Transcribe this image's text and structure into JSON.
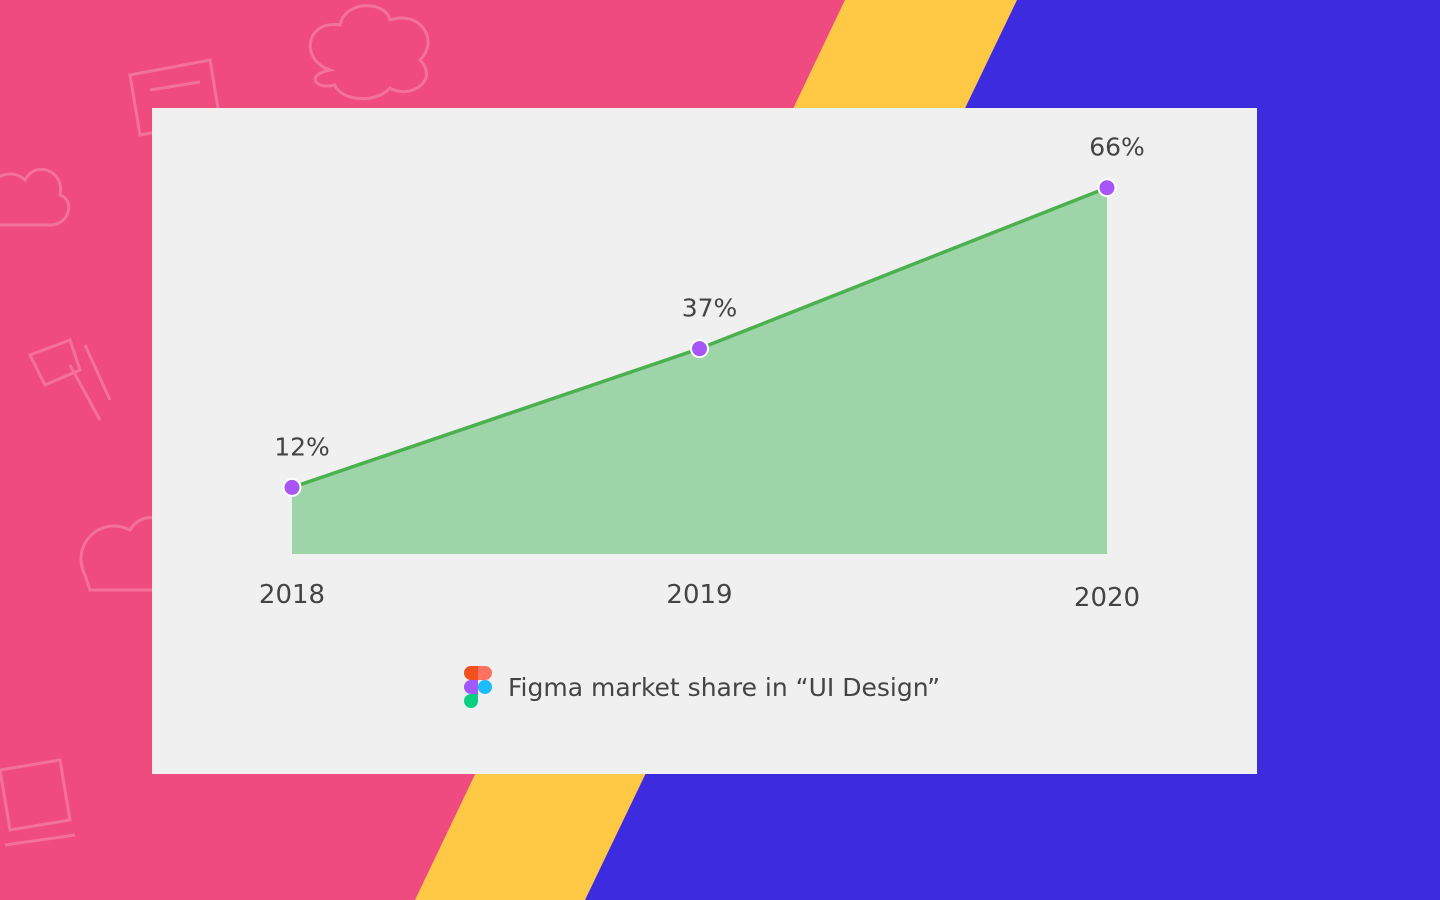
{
  "colors": {
    "background_left": "#f04b80",
    "stripe": "#ffc845",
    "background_right": "#3d2be0",
    "card": "#f0f0f0",
    "area_fill": "#9dd4a8",
    "line": "#4caf50",
    "point": "#a855f7",
    "text": "#444444"
  },
  "legend": {
    "icon": "figma-logo-icon",
    "label": "Figma market share in “UI Design”"
  },
  "chart_data": {
    "type": "area",
    "categories": [
      "2018",
      "2019",
      "2020"
    ],
    "series": [
      {
        "name": "Figma market share in “UI Design”",
        "values": [
          12,
          37,
          66
        ],
        "labels": [
          "12%",
          "37%",
          "66%"
        ]
      }
    ],
    "ylim": [
      0,
      80
    ],
    "grid": false,
    "axis_lines": false,
    "legend_position": "bottom"
  }
}
